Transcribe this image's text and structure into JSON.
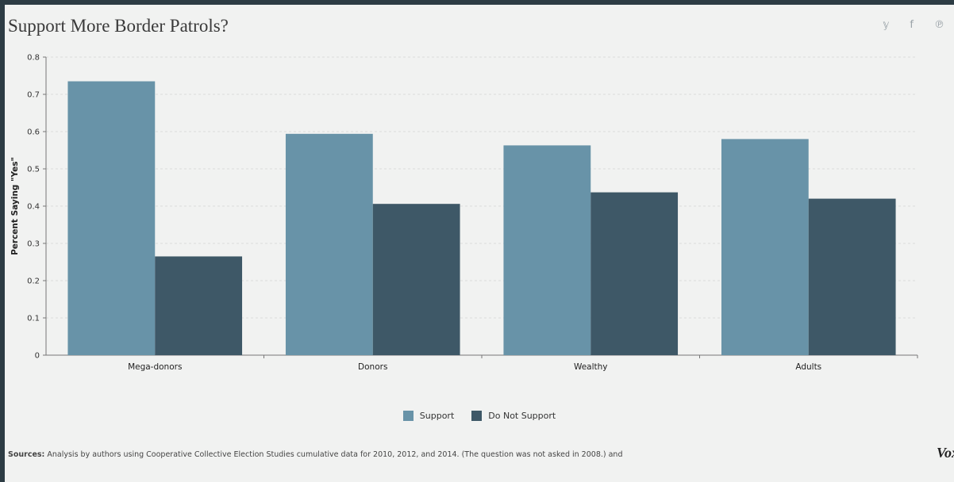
{
  "header": {
    "title": "Support More Border Patrols?",
    "share_icons": [
      {
        "name": "twitter-icon",
        "glyph": "𝕪"
      },
      {
        "name": "facebook-icon",
        "glyph": "f"
      },
      {
        "name": "pinterest-icon",
        "glyph": "℗"
      }
    ]
  },
  "chart_data": {
    "type": "bar",
    "title": "Support More Border Patrols?",
    "xlabel": "",
    "ylabel": "Percent Saying \"Yes\"",
    "ylim": [
      0,
      0.8
    ],
    "yticks": [
      0,
      0.1,
      0.2,
      0.3,
      0.4,
      0.5,
      0.6,
      0.7,
      0.8
    ],
    "ytick_labels": [
      "0",
      "0.1",
      "0.2",
      "0.3",
      "0.4",
      "0.5",
      "0.6",
      "0.7",
      "0.8"
    ],
    "categories": [
      "Mega-donors",
      "Donors",
      "Wealthy",
      "Adults"
    ],
    "series": [
      {
        "name": "Support",
        "color": "#6893a8",
        "values": [
          0.735,
          0.594,
          0.563,
          0.58
        ]
      },
      {
        "name": "Do Not Support",
        "color": "#3e5867",
        "values": [
          0.265,
          0.406,
          0.437,
          0.42
        ]
      }
    ],
    "grid": true,
    "legend": "bottom-center"
  },
  "footer": {
    "sources_label": "Sources:",
    "sources_text": " Analysis by authors using Cooperative Collective Election Studies cumulative data for 2010, 2012, and 2014. (The question was not asked in 2008.) and",
    "brand": "Vox"
  }
}
